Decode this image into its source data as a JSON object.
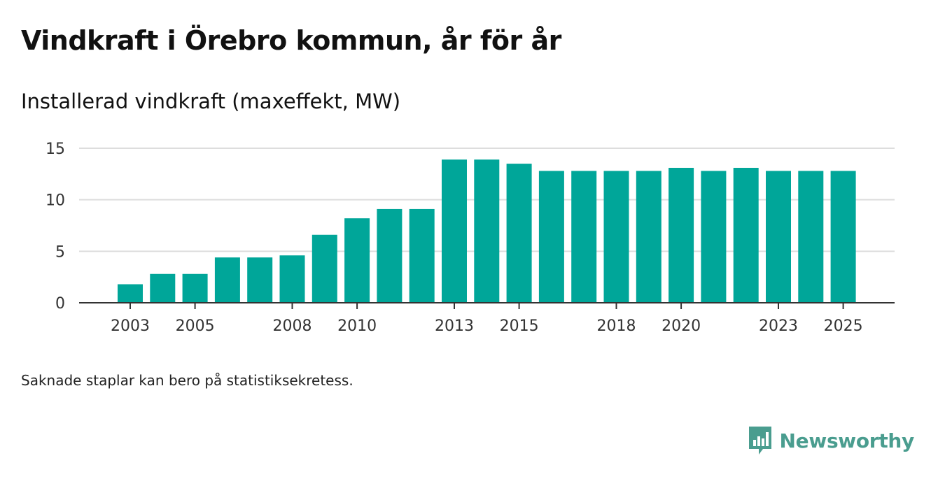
{
  "header": {
    "title": "Vindkraft i Örebro kommun, år för år",
    "subtitle": "Installerad vindkraft (maxeffekt, MW)"
  },
  "footer": {
    "note": "Saknade staplar kan bero på statistiksekretess.",
    "brand": "Newsworthy"
  },
  "colors": {
    "bar": "#00a699",
    "grid": "#dddddd",
    "axis": "#333333",
    "brand": "#4a9d8f"
  },
  "chart_data": {
    "type": "bar",
    "title": "Vindkraft i Örebro kommun, år för år",
    "ylabel": "Installerad vindkraft (maxeffekt, MW)",
    "xlabel": "",
    "categories": [
      "2003",
      "2004",
      "2005",
      "2006",
      "2007",
      "2008",
      "2009",
      "2010",
      "2011",
      "2012",
      "2013",
      "2014",
      "2015",
      "2016",
      "2017",
      "2018",
      "2019",
      "2020",
      "2021",
      "2022",
      "2023",
      "2024",
      "2025"
    ],
    "values": [
      1.8,
      2.8,
      2.8,
      4.4,
      4.4,
      4.6,
      6.6,
      8.2,
      9.1,
      9.1,
      13.9,
      13.9,
      13.5,
      12.8,
      12.8,
      12.8,
      12.8,
      13.1,
      12.8,
      13.1,
      12.8,
      12.8,
      12.8
    ],
    "ylim": [
      0,
      15
    ],
    "yticks": [
      0,
      5,
      10,
      15
    ],
    "ytick_labels": [
      "0",
      "5",
      "10",
      "15"
    ],
    "xtick_labels": [
      "2003",
      "2005",
      "2008",
      "2010",
      "2013",
      "2015",
      "2018",
      "2020",
      "2023",
      "2025"
    ],
    "grid": true,
    "legend": "none"
  }
}
